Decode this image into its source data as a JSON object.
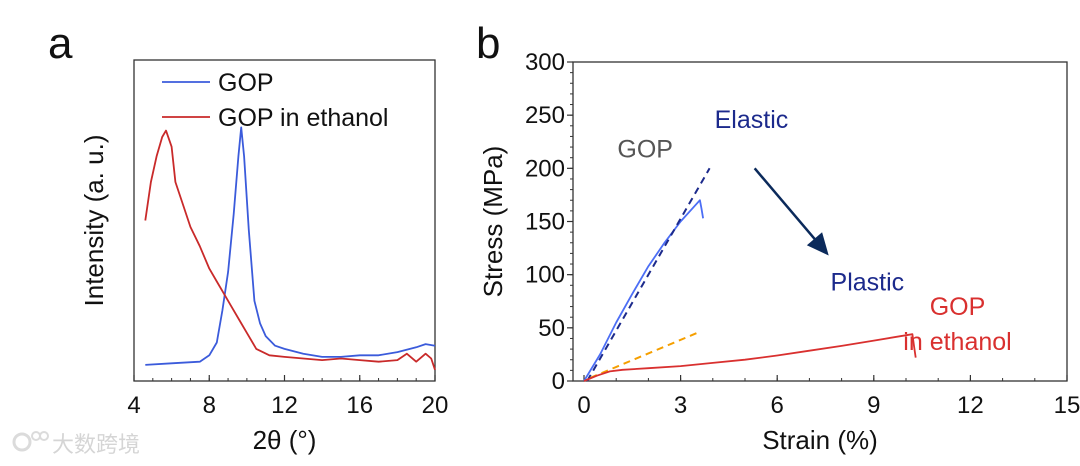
{
  "panel_labels": [
    "a",
    "b"
  ],
  "watermark": "大数跨境",
  "chart_data": [
    {
      "type": "line",
      "panel": "a",
      "xlabel": "2θ (°)",
      "ylabel": "Intensity (a. u.)",
      "xlim": [
        4,
        20
      ],
      "ylim": [
        0,
        100
      ],
      "xticks": [
        4,
        8,
        12,
        16,
        20
      ],
      "xtick_labels": [
        "4",
        "8",
        "12",
        "16",
        "20"
      ],
      "grid": false,
      "legend_position": "top-left",
      "series": [
        {
          "name": "GOP",
          "color": "#3b5bdb",
          "x": [
            4.6,
            6,
            7.5,
            8.0,
            8.4,
            8.7,
            9.0,
            9.3,
            9.55,
            9.7,
            9.85,
            10.1,
            10.4,
            10.7,
            11,
            11.5,
            12,
            13,
            14,
            15,
            16,
            17,
            18,
            19,
            19.5,
            20
          ],
          "y": [
            5,
            5.5,
            6,
            8,
            12,
            22,
            34,
            52,
            70,
            79,
            70,
            47,
            25,
            18,
            14,
            11,
            10,
            8.5,
            7.5,
            7.5,
            8,
            8,
            9,
            10.5,
            11.5,
            11
          ]
        },
        {
          "name": "GOP in ethanol",
          "color": "#c92a2a",
          "x": [
            4.6,
            4.9,
            5.2,
            5.5,
            5.7,
            6.0,
            6.2,
            6.6,
            7.0,
            7.5,
            8.0,
            8.4,
            8.8,
            9.2,
            9.6,
            10.0,
            10.5,
            11.2,
            12,
            13,
            14,
            15,
            16,
            17,
            18,
            18.5,
            19,
            19.5,
            19.8,
            20
          ],
          "y": [
            50,
            62,
            70,
            76,
            78,
            73,
            62,
            55,
            48,
            42,
            35,
            31,
            27,
            23,
            19,
            15,
            10,
            8,
            7.5,
            7,
            6.5,
            7,
            6.5,
            6,
            6.5,
            8.5,
            6,
            8.5,
            7,
            3.5
          ]
        }
      ]
    },
    {
      "type": "line",
      "panel": "b",
      "xlabel": "Strain (%)",
      "ylabel": "Stress (MPa)",
      "xlim": [
        0,
        15
      ],
      "ylim": [
        0,
        300
      ],
      "xticks": [
        0,
        3,
        6,
        9,
        12,
        15
      ],
      "xtick_labels": [
        "0",
        "3",
        "6",
        "9",
        "12",
        "15"
      ],
      "yticks": [
        0,
        50,
        100,
        150,
        200,
        250,
        300
      ],
      "ytick_labels": [
        "0",
        "50",
        "100",
        "150",
        "200",
        "250",
        "300"
      ],
      "grid": false,
      "series": [
        {
          "name": "GOP",
          "color": "#4c6ef5",
          "style": "solid",
          "x": [
            0,
            0.5,
            1.0,
            1.5,
            2.0,
            2.5,
            3.0,
            3.6,
            3.65,
            3.7
          ],
          "y": [
            0,
            25,
            55,
            82,
            108,
            130,
            150,
            170,
            162,
            153
          ]
        },
        {
          "name": "GOP elastic fit",
          "color": "#1c2a8c",
          "style": "dashed",
          "x": [
            0.1,
            3.9
          ],
          "y": [
            0,
            200
          ]
        },
        {
          "name": "GOP in ethanol elastic fit",
          "color": "#f59f00",
          "style": "dashed",
          "x": [
            0.2,
            3.5
          ],
          "y": [
            3,
            45
          ]
        },
        {
          "name": "GOP in ethanol",
          "color": "#d9302f",
          "style": "solid",
          "x": [
            0,
            0.4,
            0.8,
            1.2,
            2,
            3,
            4,
            5,
            6,
            7,
            8,
            9,
            10.2,
            10.25,
            10.3
          ],
          "y": [
            0,
            5,
            9,
            10.5,
            12,
            14,
            17,
            20,
            24,
            28.5,
            33,
            38,
            44,
            33,
            22
          ]
        }
      ],
      "annotations": [
        {
          "text": "Elastic",
          "x": 5.2,
          "y": 238,
          "color": "#1c2a8c"
        },
        {
          "text": "GOP",
          "x": 1.9,
          "y": 210,
          "color": "#555555"
        },
        {
          "text": "Plastic",
          "x": 8.8,
          "y": 85,
          "color": "#1c2a8c"
        },
        {
          "text": "GOP",
          "x": 11.6,
          "y": 62,
          "color": "#d9302f"
        },
        {
          "text": "in ethanol",
          "x": 11.6,
          "y": 29,
          "color": "#d9302f"
        }
      ],
      "arrow": {
        "from": [
          5.3,
          200
        ],
        "to": [
          7.6,
          118
        ],
        "color": "#0b2a5b"
      }
    }
  ]
}
